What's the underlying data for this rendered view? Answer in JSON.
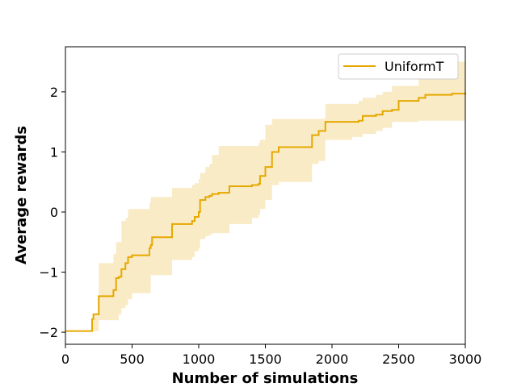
{
  "chart_data": {
    "type": "line",
    "xlabel": "Number of simulations",
    "ylabel": "Average rewards",
    "xlim": [
      0,
      3000
    ],
    "ylim": [
      -2.2,
      2.75
    ],
    "x_ticks": [
      0,
      500,
      1000,
      1500,
      2000,
      2500,
      3000
    ],
    "x_tick_labels": [
      "0",
      "500",
      "1000",
      "1500",
      "2000",
      "2500",
      "3000"
    ],
    "y_ticks": [
      -2,
      -1,
      0,
      1,
      2
    ],
    "y_tick_labels": [
      "−2",
      "−1",
      "0",
      "1",
      "2"
    ],
    "grid": false,
    "legend_position": "top-right",
    "series": [
      {
        "name": "UniformT",
        "color": "#e6a800",
        "band_color": "#f9ebc6",
        "x": [
          0,
          190,
          200,
          210,
          250,
          350,
          360,
          380,
          400,
          420,
          450,
          470,
          500,
          590,
          630,
          640,
          650,
          780,
          800,
          900,
          950,
          970,
          1000,
          1010,
          1050,
          1080,
          1100,
          1150,
          1230,
          1400,
          1450,
          1460,
          1500,
          1550,
          1600,
          1800,
          1850,
          1900,
          1950,
          2000,
          2150,
          2200,
          2230,
          2330,
          2380,
          2450,
          2500,
          2650,
          2700,
          2800,
          2900,
          3000
        ],
        "y": [
          -1.98,
          -1.98,
          -1.78,
          -1.7,
          -1.4,
          -1.4,
          -1.3,
          -1.1,
          -1.08,
          -0.95,
          -0.85,
          -0.75,
          -0.72,
          -0.72,
          -0.6,
          -0.55,
          -0.42,
          -0.42,
          -0.2,
          -0.2,
          -0.15,
          -0.08,
          0.0,
          0.2,
          0.25,
          0.27,
          0.3,
          0.32,
          0.43,
          0.45,
          0.47,
          0.6,
          0.75,
          1.0,
          1.08,
          1.08,
          1.28,
          1.35,
          1.5,
          1.5,
          1.5,
          1.52,
          1.6,
          1.62,
          1.68,
          1.7,
          1.85,
          1.9,
          1.95,
          1.95,
          1.97,
          1.98
        ],
        "upper": [
          -1.98,
          -1.98,
          -1.8,
          -1.7,
          -0.85,
          -0.85,
          -0.7,
          -0.5,
          -0.5,
          -0.15,
          -0.1,
          0.05,
          0.05,
          0.05,
          0.15,
          0.25,
          0.25,
          0.25,
          0.4,
          0.4,
          0.45,
          0.48,
          0.55,
          0.65,
          0.75,
          0.8,
          0.95,
          1.1,
          1.1,
          1.1,
          1.15,
          1.2,
          1.45,
          1.55,
          1.55,
          1.55,
          1.55,
          1.55,
          1.8,
          1.8,
          1.8,
          1.85,
          1.9,
          1.95,
          2.0,
          2.1,
          2.1,
          2.3,
          2.4,
          2.45,
          2.5,
          2.55
        ],
        "lower": [
          -1.98,
          -1.98,
          -1.98,
          -1.98,
          -1.8,
          -1.8,
          -1.8,
          -1.8,
          -1.7,
          -1.6,
          -1.55,
          -1.45,
          -1.35,
          -1.35,
          -1.35,
          -1.05,
          -1.05,
          -1.05,
          -0.8,
          -0.8,
          -0.75,
          -0.65,
          -0.6,
          -0.45,
          -0.4,
          -0.38,
          -0.35,
          -0.35,
          -0.2,
          -0.1,
          -0.05,
          0.05,
          0.2,
          0.45,
          0.5,
          0.5,
          0.8,
          0.85,
          1.2,
          1.2,
          1.25,
          1.25,
          1.3,
          1.35,
          1.4,
          1.5,
          1.5,
          1.52,
          1.52,
          1.52,
          1.52,
          1.53
        ]
      }
    ]
  }
}
